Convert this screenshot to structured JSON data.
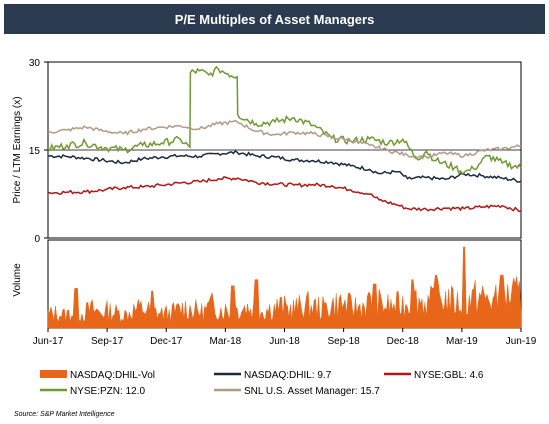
{
  "title": "P/E Multiples of Asset Managers",
  "source": "Source: S&P Market Intelligence",
  "chart_data": {
    "type": "line",
    "x_ticks": [
      "Jun-17",
      "Sep-17",
      "Dec-17",
      "Mar-18",
      "Jun-18",
      "Sep-18",
      "Dec-18",
      "Mar-19",
      "Jun-19"
    ],
    "pe_panel": {
      "ylabel": "Price / LTM Earnings (x)",
      "ylim": [
        0,
        30
      ],
      "y_ticks": [
        0,
        15,
        30
      ],
      "reference_line": 15
    },
    "volume_panel": {
      "ylabel": "Volume",
      "series_name": "NASDAQ:DHIL-Vol",
      "color": "#e8661a",
      "baseline": [
        18,
        20,
        17,
        22,
        19,
        25,
        21,
        23,
        20,
        18,
        24,
        26,
        22,
        20,
        19,
        23,
        27,
        24,
        21,
        30,
        26,
        22,
        25,
        28,
        24,
        23,
        26,
        29,
        25,
        27,
        31,
        28,
        26,
        30,
        33,
        29,
        27,
        32,
        35,
        30,
        28,
        31,
        34,
        38,
        33,
        36,
        40,
        35,
        32,
        37,
        42,
        38,
        36,
        41,
        45,
        40
      ],
      "spikes": [
        [
          0.06,
          0.45
        ],
        [
          0.22,
          0.42
        ],
        [
          0.39,
          0.48
        ],
        [
          0.44,
          0.55
        ],
        [
          0.69,
          0.5
        ],
        [
          0.77,
          0.55
        ],
        [
          0.82,
          0.6
        ],
        [
          0.88,
          0.92
        ],
        [
          0.96,
          0.6
        ]
      ]
    },
    "series": [
      {
        "name": "NASDAQ:DHIL",
        "last": "9.7",
        "color": "#1b2a3e",
        "x": [
          0,
          0.04,
          0.08,
          0.12,
          0.16,
          0.2,
          0.24,
          0.28,
          0.32,
          0.36,
          0.4,
          0.44,
          0.48,
          0.52,
          0.56,
          0.6,
          0.64,
          0.68,
          0.7,
          0.74,
          0.76,
          0.8,
          0.84,
          0.88,
          0.92,
          0.96,
          1.0
        ],
        "values": [
          14.0,
          13.9,
          13.6,
          13.2,
          12.8,
          13.5,
          13.8,
          14.0,
          13.9,
          14.4,
          14.6,
          14.0,
          13.8,
          13.3,
          13.2,
          12.9,
          12.3,
          11.7,
          11.0,
          11.3,
          10.1,
          10.3,
          10.0,
          10.9,
          10.6,
          10.2,
          9.7
        ]
      },
      {
        "name": "NYSE:GBL",
        "last": "4.6",
        "color": "#b01818",
        "x": [
          0,
          0.04,
          0.08,
          0.12,
          0.16,
          0.2,
          0.24,
          0.28,
          0.32,
          0.36,
          0.4,
          0.44,
          0.48,
          0.52,
          0.56,
          0.6,
          0.64,
          0.68,
          0.7,
          0.74,
          0.76,
          0.8,
          0.84,
          0.88,
          0.92,
          0.96,
          1.0
        ],
        "values": [
          7.7,
          7.8,
          7.9,
          8.2,
          8.6,
          8.7,
          9.0,
          9.4,
          9.6,
          10.1,
          10.2,
          9.5,
          9.2,
          9.0,
          9.1,
          8.9,
          8.2,
          7.5,
          6.5,
          5.6,
          5.0,
          4.9,
          5.1,
          5.0,
          5.3,
          5.5,
          4.6
        ]
      },
      {
        "name": "NYSE:PZN",
        "last": "12.0",
        "color": "#6e9a30",
        "x": [
          0,
          0.04,
          0.08,
          0.12,
          0.16,
          0.2,
          0.24,
          0.28,
          0.3,
          0.301,
          0.32,
          0.34,
          0.36,
          0.38,
          0.4,
          0.401,
          0.44,
          0.48,
          0.52,
          0.56,
          0.6,
          0.64,
          0.68,
          0.72,
          0.75,
          0.78,
          0.8,
          0.82,
          0.86,
          0.88,
          0.9,
          0.93,
          0.96,
          1.0
        ],
        "values": [
          15.2,
          15.8,
          16.2,
          15.4,
          15.0,
          15.8,
          16.2,
          16.8,
          15.5,
          28.2,
          28.5,
          27.8,
          28.8,
          28.0,
          27.5,
          21.0,
          19.5,
          19.8,
          20.5,
          19.2,
          17.0,
          16.5,
          16.9,
          16.2,
          16.8,
          13.5,
          14.8,
          13.2,
          12.0,
          11.2,
          11.8,
          14.0,
          12.8,
          12.0
        ]
      },
      {
        "name": "SNL U.S. Asset Manager",
        "last": "15.7",
        "color": "#b39a86",
        "x": [
          0,
          0.04,
          0.08,
          0.12,
          0.16,
          0.2,
          0.24,
          0.28,
          0.32,
          0.36,
          0.4,
          0.44,
          0.48,
          0.52,
          0.56,
          0.6,
          0.64,
          0.68,
          0.72,
          0.76,
          0.8,
          0.84,
          0.88,
          0.92,
          0.96,
          1.0
        ],
        "values": [
          18.0,
          18.4,
          18.9,
          18.2,
          17.8,
          18.5,
          18.9,
          19.1,
          18.6,
          19.5,
          19.8,
          18.2,
          17.6,
          18.0,
          17.8,
          17.2,
          16.6,
          15.8,
          14.9,
          14.1,
          13.8,
          14.5,
          14.0,
          14.9,
          15.2,
          15.7
        ]
      }
    ]
  }
}
